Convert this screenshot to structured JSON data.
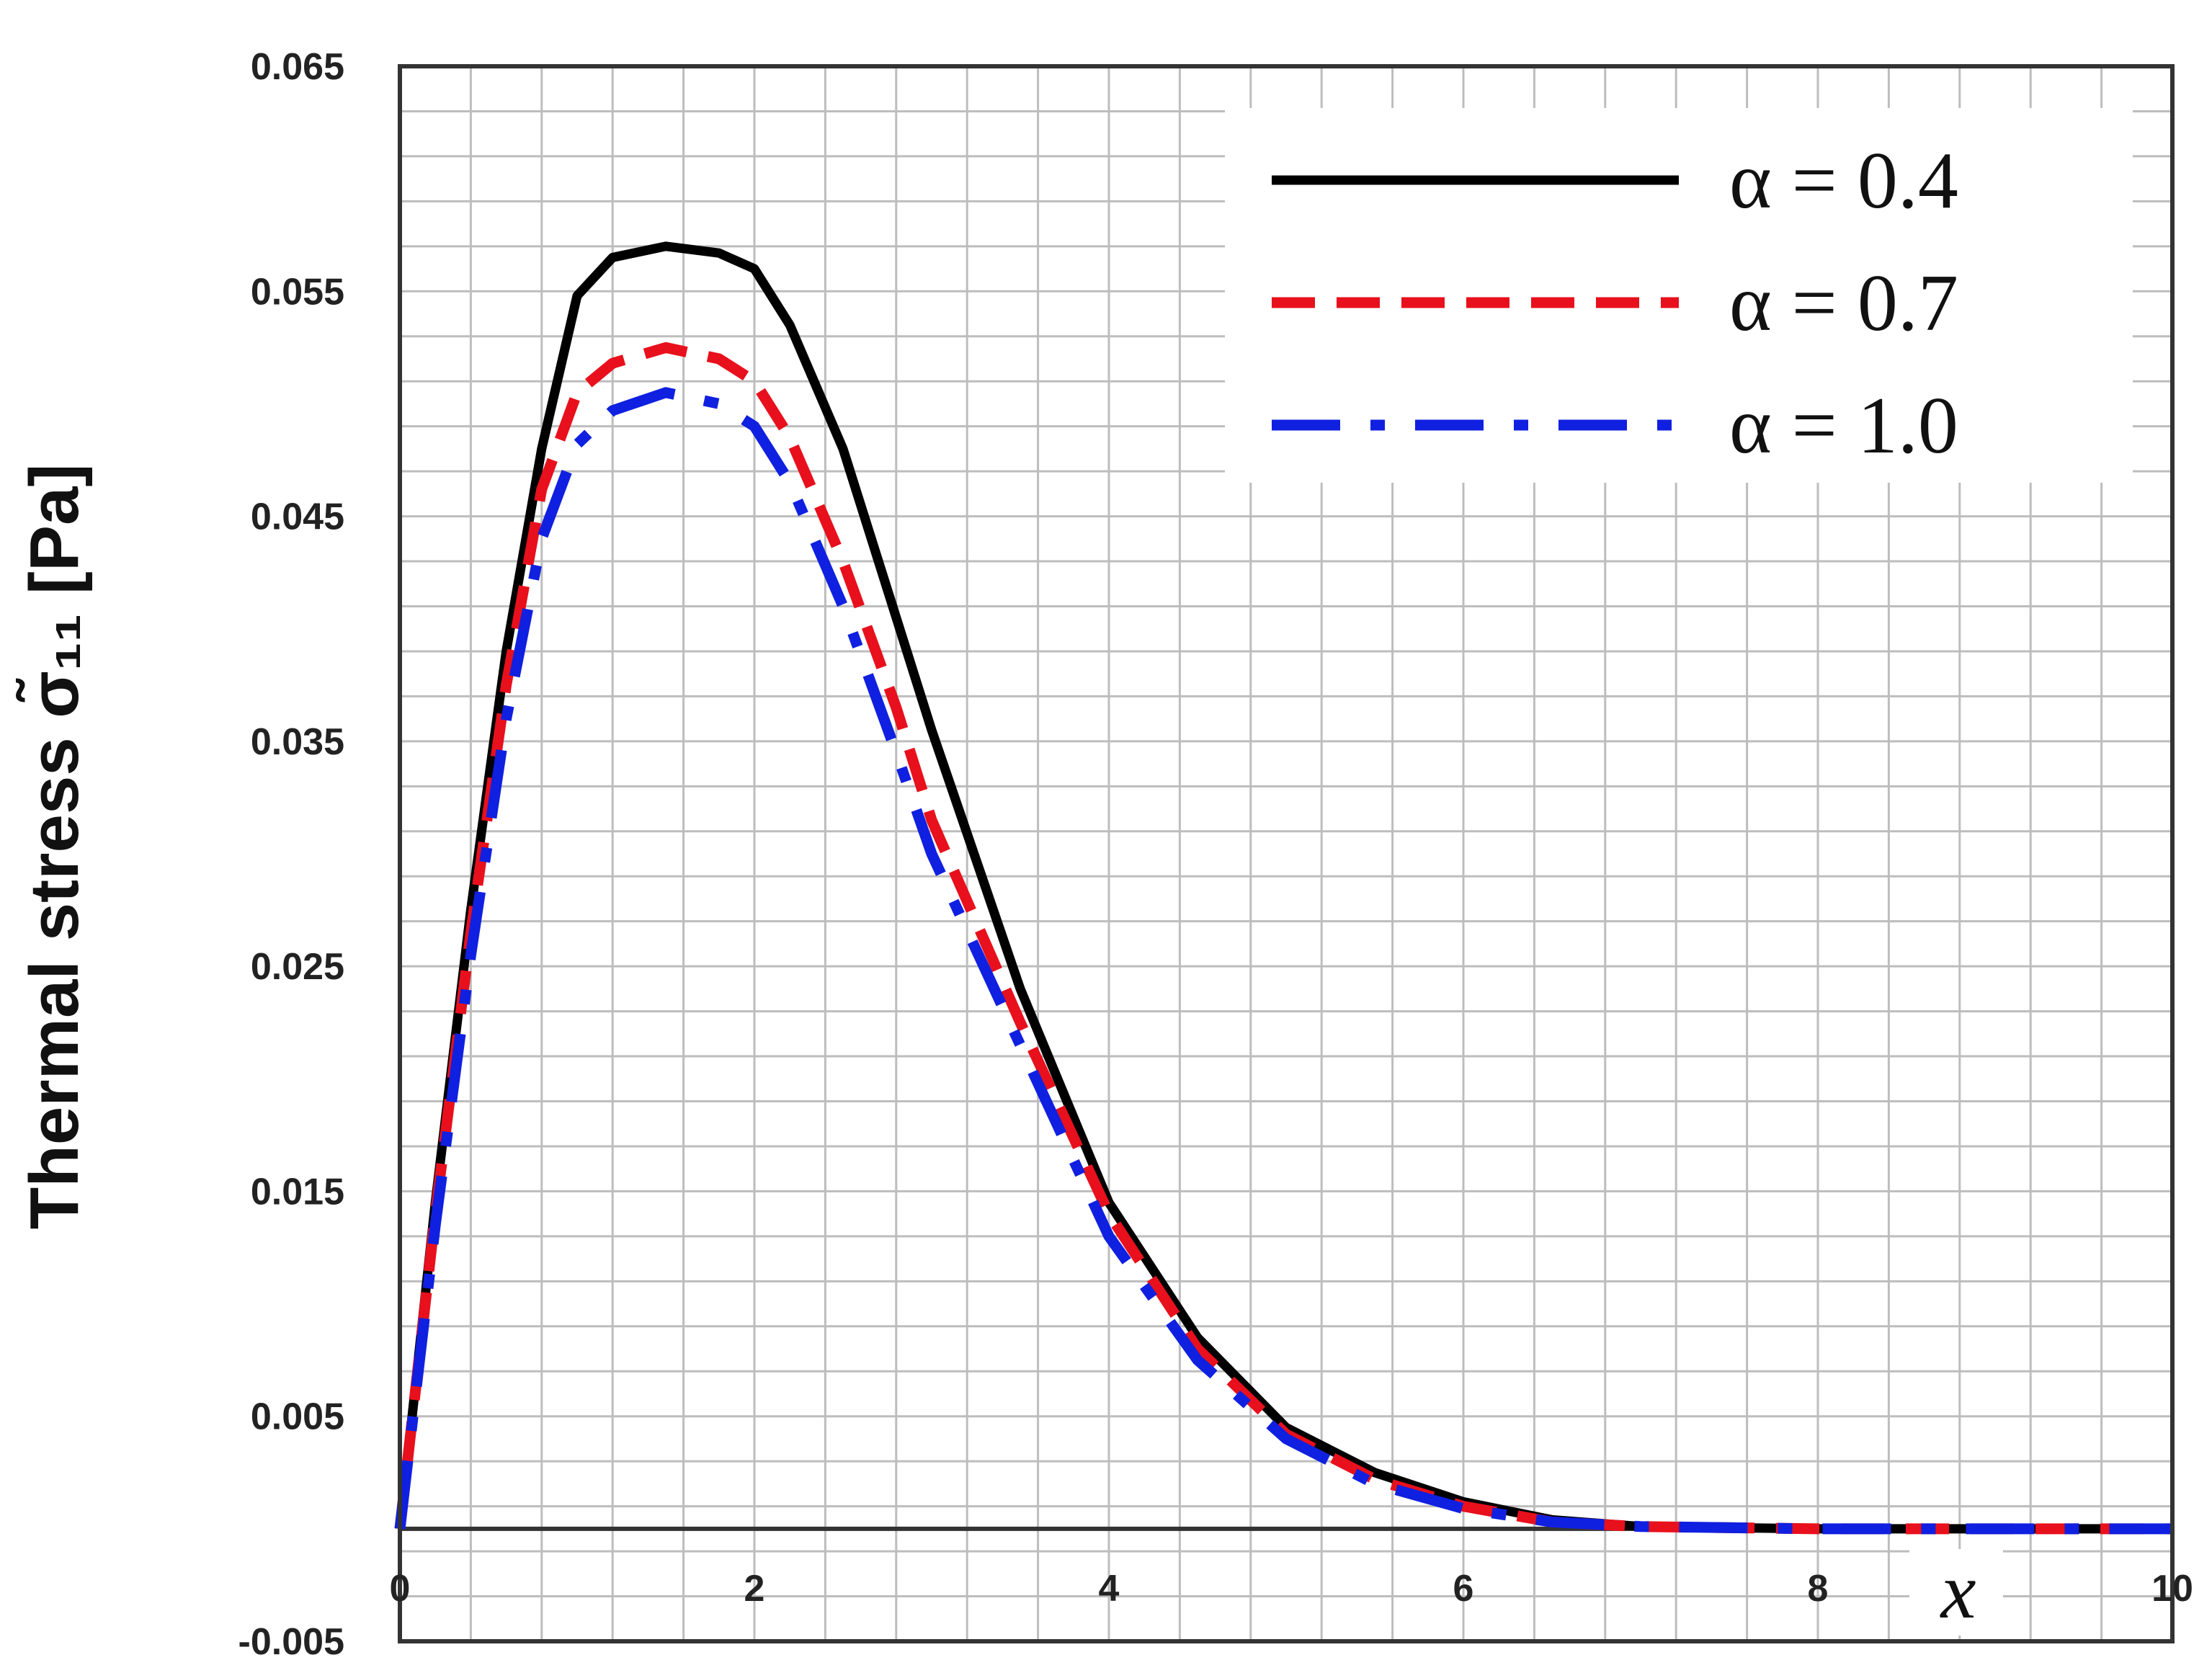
{
  "chart_data": {
    "type": "line",
    "title": "",
    "xlabel": "x",
    "ylabel": "Thermal stress σ̃₁₁ [Pa]",
    "xlim": [
      0,
      10
    ],
    "ylim": [
      -0.005,
      0.065
    ],
    "x_ticks": [
      "0",
      "2",
      "4",
      "6",
      "8",
      "10"
    ],
    "y_ticks": [
      "0.065",
      "0.055",
      "0.045",
      "0.035",
      "0.025",
      "0.015",
      "0.005",
      "-0.005"
    ],
    "grid": true,
    "legend_position": "top-right",
    "series": [
      {
        "name": "α = 0.4",
        "color": "#000000",
        "dash": "solid",
        "points": [
          [
            0,
            0
          ],
          [
            0.2,
            0.0145
          ],
          [
            0.4,
            0.0275
          ],
          [
            0.6,
            0.039
          ],
          [
            0.8,
            0.048
          ],
          [
            1.0,
            0.0548
          ],
          [
            1.2,
            0.0565
          ],
          [
            1.5,
            0.057
          ],
          [
            1.8,
            0.0567
          ],
          [
            2.0,
            0.056
          ],
          [
            2.2,
            0.0535
          ],
          [
            2.5,
            0.048
          ],
          [
            2.8,
            0.0405
          ],
          [
            3.0,
            0.0355
          ],
          [
            3.5,
            0.024
          ],
          [
            4.0,
            0.0145
          ],
          [
            4.5,
            0.0085
          ],
          [
            5.0,
            0.0045
          ],
          [
            5.5,
            0.0025
          ],
          [
            6.0,
            0.0012
          ],
          [
            6.5,
            0.0004
          ],
          [
            7.0,
            0.0001
          ],
          [
            8.0,
            0.0
          ],
          [
            9.0,
            0.0
          ],
          [
            10.0,
            0.0
          ]
        ]
      },
      {
        "name": "α = 0.7",
        "color": "#e8101c",
        "dash": "dashed",
        "points": [
          [
            0,
            0
          ],
          [
            0.2,
            0.014
          ],
          [
            0.4,
            0.0265
          ],
          [
            0.6,
            0.0375
          ],
          [
            0.8,
            0.0462
          ],
          [
            1.0,
            0.0505
          ],
          [
            1.2,
            0.0518
          ],
          [
            1.5,
            0.0525
          ],
          [
            1.8,
            0.052
          ],
          [
            2.0,
            0.051
          ],
          [
            2.2,
            0.0485
          ],
          [
            2.5,
            0.043
          ],
          [
            2.8,
            0.0365
          ],
          [
            3.0,
            0.0315
          ],
          [
            3.5,
            0.0225
          ],
          [
            4.0,
            0.014
          ],
          [
            4.5,
            0.008
          ],
          [
            5.0,
            0.0042
          ],
          [
            5.5,
            0.0022
          ],
          [
            6.0,
            0.001
          ],
          [
            6.5,
            0.0003
          ],
          [
            7.0,
            0.0001
          ],
          [
            8.0,
            0.0
          ],
          [
            9.0,
            0.0
          ],
          [
            10.0,
            0.0
          ]
        ]
      },
      {
        "name": "α = 1.0",
        "color": "#1020e0",
        "dash": "long-dash-dot",
        "points": [
          [
            0,
            0
          ],
          [
            0.2,
            0.0135
          ],
          [
            0.4,
            0.0255
          ],
          [
            0.6,
            0.036
          ],
          [
            0.8,
            0.044
          ],
          [
            1.0,
            0.0482
          ],
          [
            1.2,
            0.0497
          ],
          [
            1.5,
            0.0505
          ],
          [
            1.8,
            0.05
          ],
          [
            2.0,
            0.049
          ],
          [
            2.2,
            0.0465
          ],
          [
            2.5,
            0.041
          ],
          [
            2.8,
            0.0345
          ],
          [
            3.0,
            0.03
          ],
          [
            3.5,
            0.0215
          ],
          [
            4.0,
            0.013
          ],
          [
            4.5,
            0.0075
          ],
          [
            5.0,
            0.004
          ],
          [
            5.5,
            0.002
          ],
          [
            6.0,
            0.0009
          ],
          [
            6.5,
            0.0003
          ],
          [
            7.0,
            0.0001
          ],
          [
            8.0,
            0.0
          ],
          [
            9.0,
            0.0
          ],
          [
            10.0,
            0.0
          ]
        ]
      }
    ]
  }
}
